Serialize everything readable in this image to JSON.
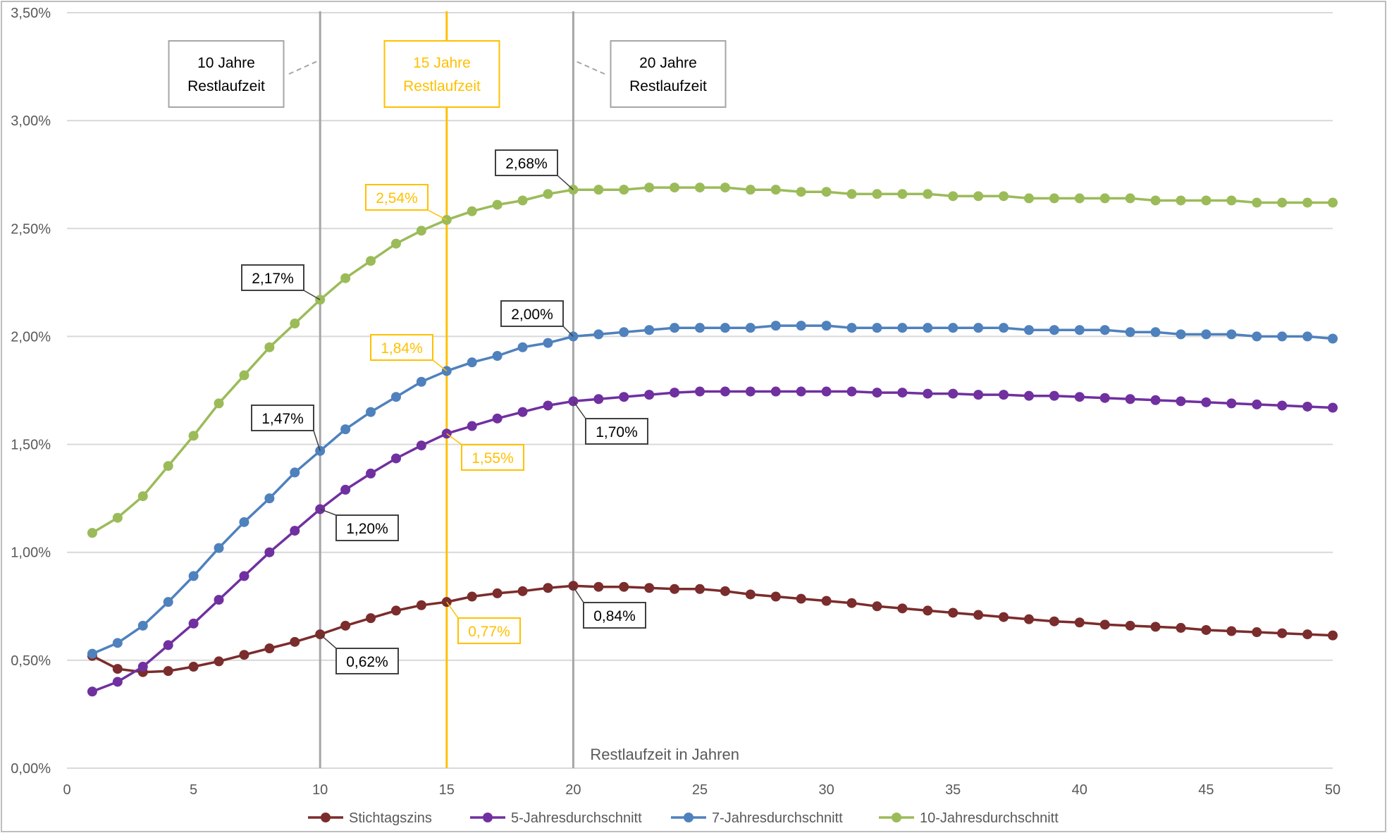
{
  "chart_data": {
    "type": "line",
    "title": "",
    "xlabel": "Restlaufzeit in Jahren",
    "ylabel": "",
    "xlim": [
      0,
      50
    ],
    "ylim": [
      0,
      3.5
    ],
    "grid": true,
    "legend_position": "bottom",
    "x_ticks": [
      0,
      5,
      10,
      15,
      20,
      25,
      30,
      35,
      40,
      45,
      50
    ],
    "x_tick_labels": [
      "0",
      "5",
      "10",
      "15",
      "20",
      "25",
      "30",
      "35",
      "40",
      "45",
      "50"
    ],
    "y_ticks": [
      0,
      0.5,
      1,
      1.5,
      2,
      2.5,
      3,
      3.5
    ],
    "y_tick_labels": [
      "0,00%",
      "0,50%",
      "1,00%",
      "1,50%",
      "2,00%",
      "2,50%",
      "3,00%",
      "3,50%"
    ],
    "x": [
      1,
      2,
      3,
      4,
      5,
      6,
      7,
      8,
      9,
      10,
      11,
      12,
      13,
      14,
      15,
      16,
      17,
      18,
      19,
      20,
      21,
      22,
      23,
      24,
      25,
      26,
      27,
      28,
      29,
      30,
      31,
      32,
      33,
      34,
      35,
      36,
      37,
      38,
      39,
      40,
      41,
      42,
      43,
      44,
      45,
      46,
      47,
      48,
      49,
      50
    ],
    "series": [
      {
        "name": "Stichtagszins",
        "color": "#7B2C2C",
        "values": [
          0.52,
          0.46,
          0.445,
          0.45,
          0.47,
          0.495,
          0.525,
          0.555,
          0.585,
          0.62,
          0.66,
          0.695,
          0.73,
          0.755,
          0.77,
          0.795,
          0.81,
          0.82,
          0.835,
          0.845,
          0.84,
          0.84,
          0.835,
          0.83,
          0.83,
          0.82,
          0.805,
          0.795,
          0.785,
          0.775,
          0.765,
          0.75,
          0.74,
          0.73,
          0.72,
          0.71,
          0.7,
          0.69,
          0.68,
          0.675,
          0.665,
          0.66,
          0.655,
          0.65,
          0.64,
          0.635,
          0.63,
          0.625,
          0.62,
          0.615
        ]
      },
      {
        "name": "5-Jahresdurchschnitt",
        "color": "#7030A0",
        "values": [
          0.355,
          0.4,
          0.47,
          0.57,
          0.67,
          0.78,
          0.89,
          1.0,
          1.1,
          1.2,
          1.29,
          1.365,
          1.435,
          1.495,
          1.55,
          1.585,
          1.62,
          1.65,
          1.68,
          1.7,
          1.71,
          1.72,
          1.73,
          1.74,
          1.745,
          1.745,
          1.745,
          1.745,
          1.745,
          1.745,
          1.745,
          1.74,
          1.74,
          1.735,
          1.735,
          1.73,
          1.73,
          1.725,
          1.725,
          1.72,
          1.715,
          1.71,
          1.705,
          1.7,
          1.695,
          1.69,
          1.685,
          1.68,
          1.675,
          1.67
        ]
      },
      {
        "name": "7-Jahresdurchschnitt",
        "color": "#4F81BD",
        "values": [
          0.53,
          0.58,
          0.66,
          0.77,
          0.89,
          1.02,
          1.14,
          1.25,
          1.37,
          1.47,
          1.57,
          1.65,
          1.72,
          1.79,
          1.84,
          1.88,
          1.91,
          1.95,
          1.97,
          2.0,
          2.01,
          2.02,
          2.03,
          2.04,
          2.04,
          2.04,
          2.04,
          2.05,
          2.05,
          2.05,
          2.04,
          2.04,
          2.04,
          2.04,
          2.04,
          2.04,
          2.04,
          2.03,
          2.03,
          2.03,
          2.03,
          2.02,
          2.02,
          2.01,
          2.01,
          2.01,
          2.0,
          2.0,
          2.0,
          1.99
        ]
      },
      {
        "name": "10-Jahresdurchschnitt",
        "color": "#9BBB59",
        "values": [
          1.09,
          1.16,
          1.26,
          1.4,
          1.54,
          1.69,
          1.82,
          1.95,
          2.06,
          2.17,
          2.27,
          2.35,
          2.43,
          2.49,
          2.54,
          2.58,
          2.61,
          2.63,
          2.66,
          2.68,
          2.68,
          2.68,
          2.69,
          2.69,
          2.69,
          2.69,
          2.68,
          2.68,
          2.67,
          2.67,
          2.66,
          2.66,
          2.66,
          2.66,
          2.65,
          2.65,
          2.65,
          2.64,
          2.64,
          2.64,
          2.64,
          2.64,
          2.63,
          2.63,
          2.63,
          2.63,
          2.62,
          2.62,
          2.62,
          2.62
        ]
      }
    ],
    "vertical_lines": [
      {
        "x": 10,
        "color": "#A6A6A6"
      },
      {
        "x": 15,
        "color": "#FFC000"
      },
      {
        "x": 20,
        "color": "#A6A6A6"
      }
    ],
    "annotations": {
      "headers": [
        {
          "x": 10,
          "lines": [
            "10 Jahre",
            "Restlaufzeit"
          ],
          "color": "#000000",
          "border": "#A6A6A6"
        },
        {
          "x": 15,
          "lines": [
            "15 Jahre",
            "Restlaufzeit"
          ],
          "color": "#FFC000",
          "border": "#FFC000"
        },
        {
          "x": 20,
          "lines": [
            "20 Jahre",
            "Restlaufzeit"
          ],
          "color": "#000000",
          "border": "#A6A6A6"
        }
      ],
      "value_labels": [
        {
          "x": 10,
          "y": 2.17,
          "text": "2,17%",
          "color": "#000000"
        },
        {
          "x": 15,
          "y": 2.54,
          "text": "2,54%",
          "color": "#FFC000"
        },
        {
          "x": 20,
          "y": 2.68,
          "text": "2,68%",
          "color": "#000000"
        },
        {
          "x": 10,
          "y": 1.47,
          "text": "1,47%",
          "color": "#000000"
        },
        {
          "x": 15,
          "y": 1.84,
          "text": "1,84%",
          "color": "#FFC000"
        },
        {
          "x": 20,
          "y": 2.0,
          "text": "2,00%",
          "color": "#000000"
        },
        {
          "x": 10,
          "y": 1.2,
          "text": "1,20%",
          "color": "#000000"
        },
        {
          "x": 15,
          "y": 1.55,
          "text": "1,55%",
          "color": "#FFC000"
        },
        {
          "x": 20,
          "y": 1.7,
          "text": "1,70%",
          "color": "#000000"
        },
        {
          "x": 10,
          "y": 0.62,
          "text": "0,62%",
          "color": "#000000"
        },
        {
          "x": 15,
          "y": 0.77,
          "text": "0,77%",
          "color": "#FFC000"
        },
        {
          "x": 20,
          "y": 0.84,
          "text": "0,84%",
          "color": "#000000"
        }
      ]
    }
  }
}
